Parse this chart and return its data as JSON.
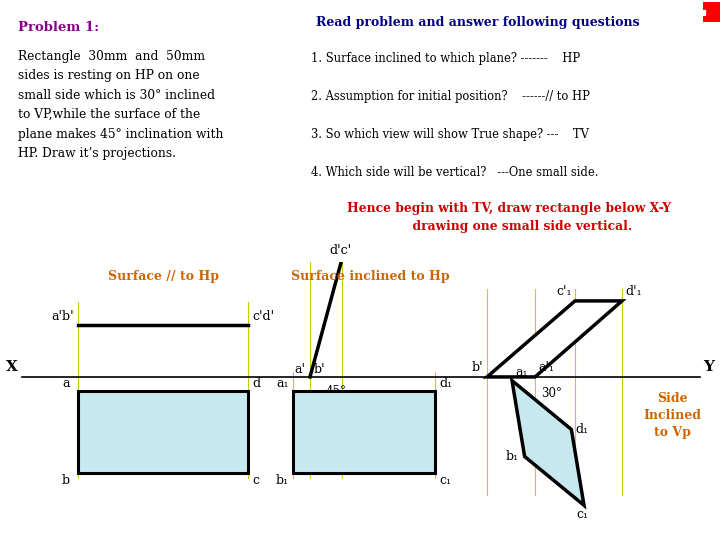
{
  "bg_color_top_left": "#ffd9ff",
  "bg_color_top_right": "#ffffcc",
  "problem_title": "Problem 1:",
  "problem_text": "Rectangle  30mm  and  50mm\nsides is resting on HP on one\nsmall side which is 30° inclined\nto VP,while the surface of the\nplane makes 45° inclination with\nHP. Draw it’s projections.",
  "read_title": "Read problem and answer following questions",
  "read_lines": [
    "1. Surface inclined to which plane? -------    HP",
    "2. Assumption for initial position?    ------// to HP",
    "3. So which view will show True shape? ---    TV",
    "4. Which side will be vertical?   ---One small side."
  ],
  "read_footer": "Hence begin with TV, draw rectangle below X-Y\n      drawing one small side vertical.",
  "label_surface_parallel": "Surface // to Hp",
  "label_surface_inclined": "Surface inclined to Hp",
  "label_side_inclined": "Side\nInclined\nto Vp",
  "rect_fill_color": "#c8e8f0",
  "guide_line_color": "#cccc00",
  "label_color_orange": "#cc6600",
  "label_color_purple": "#880088",
  "label_color_darkblue": "#000088",
  "label_color_red": "#cc0000"
}
